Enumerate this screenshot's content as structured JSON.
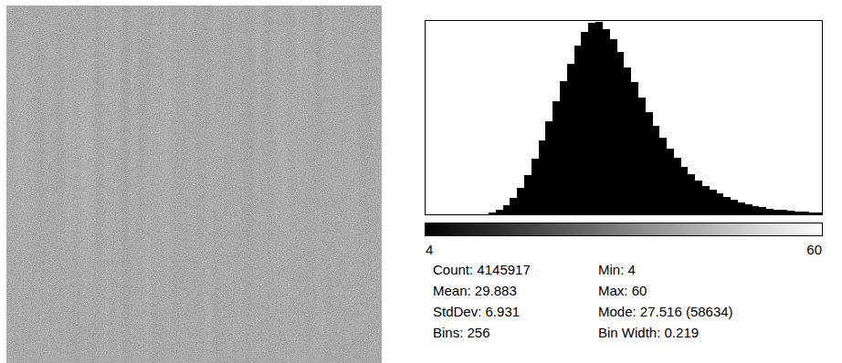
{
  "chart_data": {
    "type": "histogram",
    "color": "#000000",
    "bins": [
      4,
      5,
      6,
      7,
      8,
      9,
      10,
      11,
      12,
      13,
      14,
      15,
      16,
      17,
      18,
      19,
      20,
      21,
      22,
      23,
      24,
      25,
      26,
      27,
      28,
      29,
      30,
      31,
      32,
      33,
      34,
      35,
      36,
      37,
      38,
      39,
      40,
      41,
      42,
      43,
      44,
      45,
      46,
      47,
      48,
      49,
      50,
      51,
      52,
      53,
      54,
      55,
      56,
      57,
      58,
      59,
      60
    ],
    "values": [
      0,
      0,
      0,
      0,
      0,
      0,
      200,
      600,
      1500,
      3500,
      7500,
      14000,
      24000,
      38000,
      56000,
      78000,
      103000,
      130000,
      158000,
      185000,
      210000,
      235000,
      254000,
      266000,
      267000,
      258000,
      244000,
      226000,
      205000,
      184000,
      163000,
      143000,
      124000,
      107000,
      92000,
      79000,
      67000,
      57000,
      48000,
      41000,
      35000,
      30000,
      25000,
      21000,
      18000,
      15000,
      13000,
      11000,
      9000,
      8000,
      7000,
      6000,
      5000,
      4500,
      4000,
      3500
    ],
    "xlim": [
      4,
      60
    ],
    "xticks": [
      4,
      60
    ],
    "ylim": [
      0,
      270000
    ],
    "tick_labels": "x",
    "annotations": [
      "Count: 4145917",
      "Mean: 29.883",
      "StdDev: 6.931",
      "Bins: 256",
      "Min: 4",
      "Max: 60",
      "Mode: 27.516 (58634)",
      "Bin Width: 0.219"
    ]
  }
}
